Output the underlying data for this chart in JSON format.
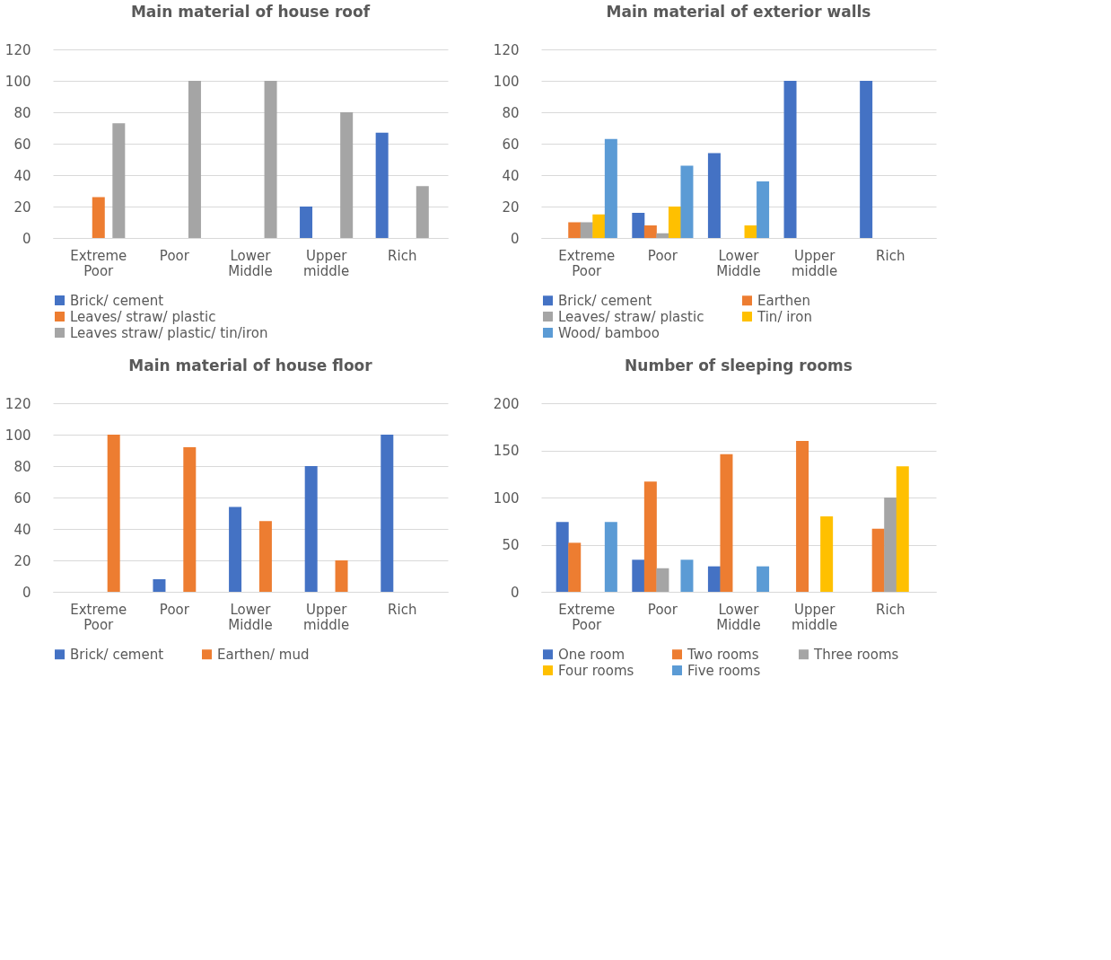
{
  "chart_data": [
    {
      "type": "bar",
      "title": "Main material of house roof",
      "categories": [
        "Extreme Poor",
        "Poor",
        "Lower Middle",
        "Upper middle",
        "Rich"
      ],
      "ylim": [
        0,
        120
      ],
      "yticks": [
        0,
        20,
        40,
        60,
        80,
        100,
        120
      ],
      "grid": "y",
      "legend": "bottom",
      "series": [
        {
          "name": "Brick/ cement",
          "color": "#4472c4",
          "values": [
            null,
            null,
            null,
            20,
            67
          ]
        },
        {
          "name": "Leaves/ straw/ plastic",
          "color": "#ed7d31",
          "values": [
            26,
            null,
            null,
            null,
            null
          ]
        },
        {
          "name": "Leaves straw/ plastic/ tin/iron",
          "color": "#a5a5a5",
          "values": [
            73,
            100,
            100,
            80,
            33
          ]
        }
      ]
    },
    {
      "type": "bar",
      "title": "Main material of exterior walls",
      "categories": [
        "Extreme Poor",
        "Poor",
        "Lower Middle",
        "Upper middle",
        "Rich"
      ],
      "ylim": [
        0,
        120
      ],
      "yticks": [
        0,
        20,
        40,
        60,
        80,
        100,
        120
      ],
      "grid": "y",
      "legend": "bottom",
      "series": [
        {
          "name": "Brick/ cement",
          "color": "#4472c4",
          "values": [
            null,
            16,
            54,
            100,
            100
          ]
        },
        {
          "name": "Earthen",
          "color": "#ed7d31",
          "values": [
            10,
            8,
            null,
            null,
            null
          ]
        },
        {
          "name": "Leaves/ straw/ plastic",
          "color": "#a5a5a5",
          "values": [
            10,
            3,
            null,
            null,
            null
          ]
        },
        {
          "name": "Tin/ iron",
          "color": "#ffc000",
          "values": [
            15,
            20,
            8,
            null,
            null
          ]
        },
        {
          "name": "Wood/ bamboo",
          "color": "#5b9bd5",
          "values": [
            63,
            46,
            36,
            null,
            null
          ]
        }
      ]
    },
    {
      "type": "bar",
      "title": "Main material of house floor",
      "categories": [
        "Extreme Poor",
        "Poor",
        "Lower Middle",
        "Upper middle",
        "Rich"
      ],
      "ylim": [
        0,
        120
      ],
      "yticks": [
        0,
        20,
        40,
        60,
        80,
        100,
        120
      ],
      "grid": "y",
      "legend": "bottom",
      "series": [
        {
          "name": "Brick/ cement",
          "color": "#4472c4",
          "values": [
            null,
            8,
            54,
            80,
            100
          ]
        },
        {
          "name": "Earthen/ mud",
          "color": "#ed7d31",
          "values": [
            100,
            92,
            45,
            20,
            null
          ]
        }
      ]
    },
    {
      "type": "bar",
      "title": "Number of sleeping rooms",
      "categories": [
        "Extreme Poor",
        "Poor",
        "Lower Middle",
        "Upper middle",
        "Rich"
      ],
      "ylim": [
        0,
        200
      ],
      "yticks": [
        0,
        50,
        100,
        150,
        200
      ],
      "grid": "y",
      "legend": "bottom",
      "series": [
        {
          "name": "One room",
          "color": "#4472c4",
          "values": [
            74,
            34,
            27,
            null,
            null
          ]
        },
        {
          "name": "Two rooms",
          "color": "#ed7d31",
          "values": [
            52,
            117,
            146,
            160,
            67
          ]
        },
        {
          "name": "Three rooms",
          "color": "#a5a5a5",
          "values": [
            null,
            25,
            null,
            null,
            100
          ]
        },
        {
          "name": "Four rooms",
          "color": "#ffc000",
          "values": [
            null,
            null,
            null,
            80,
            133
          ]
        },
        {
          "name": "Five rooms",
          "color": "#5b9bd5",
          "values": [
            74,
            34,
            27,
            null,
            null
          ]
        }
      ]
    }
  ]
}
